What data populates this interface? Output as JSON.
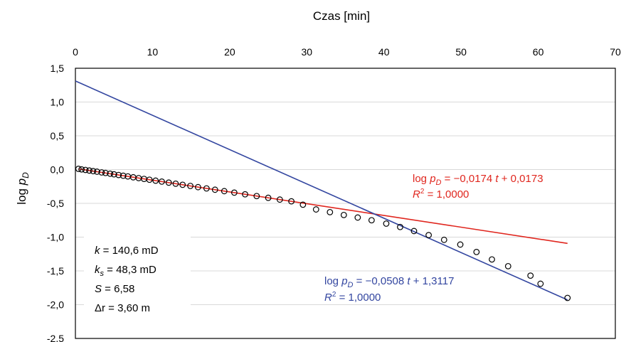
{
  "chart_data": {
    "type": "scatter",
    "xlabel": "Czas [min]",
    "xlim": [
      0,
      70
    ],
    "xticks": [
      "0",
      "10",
      "20",
      "30",
      "40",
      "50",
      "60",
      "70"
    ],
    "ylim": [
      -2.5,
      1.5
    ],
    "yticks": [
      "1,5",
      "1,0",
      "0,5",
      "0,0",
      "-0,5",
      "-1,0",
      "-1,5",
      "-2,0",
      "-2,5"
    ],
    "grid": "horizontal",
    "series": [
      {
        "color": "#000000",
        "marker": "open-circle",
        "x": [
          0.4,
          0.8,
          1.3,
          1.8,
          2.3,
          2.8,
          3.4,
          3.9,
          4.5,
          5.0,
          5.6,
          6.2,
          6.8,
          7.5,
          8.2,
          8.9,
          9.6,
          10.4,
          11.2,
          12.1,
          13.0,
          13.9,
          14.9,
          15.9,
          17.0,
          18.1,
          19.3,
          20.6,
          22.0,
          23.5,
          25.0,
          26.5,
          28.0,
          29.5,
          31.2,
          33.0,
          34.8,
          36.6,
          38.4,
          40.3,
          42.1,
          43.9,
          45.8,
          47.8,
          49.9,
          52.0,
          54.0,
          56.1,
          59.0,
          60.3,
          63.8
        ],
        "y": [
          0.011,
          0.003,
          -0.005,
          -0.014,
          -0.023,
          -0.031,
          -0.042,
          -0.05,
          -0.061,
          -0.07,
          -0.08,
          -0.091,
          -0.101,
          -0.114,
          -0.126,
          -0.138,
          -0.15,
          -0.164,
          -0.178,
          -0.193,
          -0.209,
          -0.225,
          -0.242,
          -0.26,
          -0.279,
          -0.298,
          -0.319,
          -0.341,
          -0.366,
          -0.392,
          -0.418,
          -0.444,
          -0.47,
          -0.52,
          -0.59,
          -0.63,
          -0.672,
          -0.71,
          -0.75,
          -0.8,
          -0.85,
          -0.91,
          -0.97,
          -1.04,
          -1.11,
          -1.22,
          -1.33,
          -1.43,
          -1.57,
          -1.69,
          -1.9
        ]
      },
      {
        "color": "#e0261e",
        "type": "line",
        "slope": -0.0174,
        "intercept": 0.0173,
        "x_range": [
          0.4,
          63.8
        ]
      },
      {
        "color": "#3346a0",
        "type": "line",
        "slope": -0.0508,
        "intercept": 1.3117,
        "x_range": [
          0,
          63.8
        ]
      }
    ],
    "annotations": {
      "red": {
        "line1_prefix": "log ",
        "line1_var": "p",
        "line1_sub": "D",
        "line1_mid": " = −0,0174 ",
        "line1_t": "t",
        "line1_end": " + 0,0173",
        "line2_R": "R",
        "line2_sup": "2",
        "line2_end": " = 1,0000"
      },
      "blue": {
        "line1_prefix": "log ",
        "line1_var": "p",
        "line1_sub": "D",
        "line1_mid": " = −0,0508 ",
        "line1_t": "t",
        "line1_end": " + 1,3117",
        "line2_R": "R",
        "line2_sup": "2",
        "line2_end": " = 1,0000"
      }
    },
    "ylabel_main": "log ",
    "ylabel_var": "p",
    "ylabel_sub": "D",
    "params": {
      "k_var": "k",
      "k_val": " = 140,6 mD",
      "ks_var": "k",
      "ks_sub": "s",
      "ks_val": " = 48,3 mD",
      "S_var": "S",
      "S_val": " = 6,58",
      "dr_var": "Δr",
      "dr_val": " = 3,60 m"
    }
  }
}
